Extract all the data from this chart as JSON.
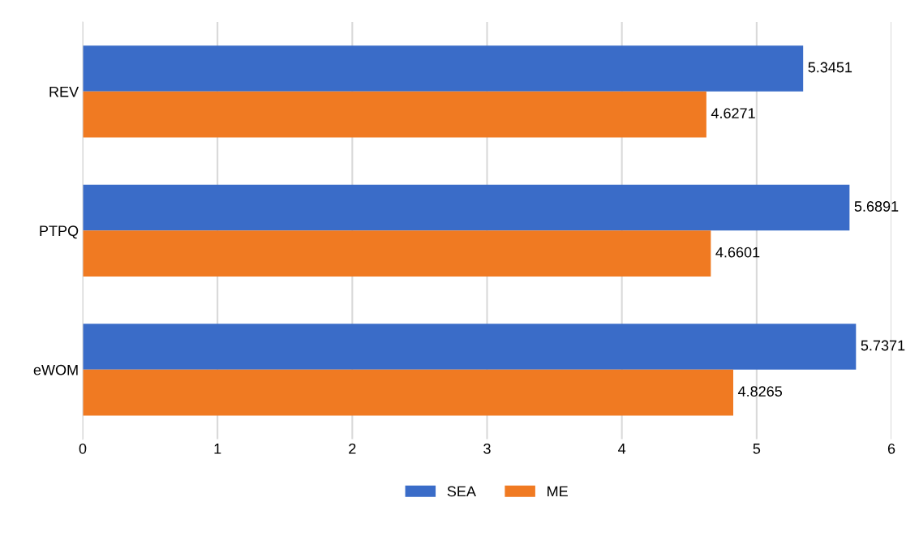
{
  "chart_data": {
    "type": "bar",
    "orientation": "horizontal",
    "categories": [
      "REV",
      "PTPQ",
      "eWOM"
    ],
    "series": [
      {
        "name": "SEA",
        "color": "#3a6cc8",
        "values": [
          5.3451,
          5.6891,
          5.7371
        ]
      },
      {
        "name": "ME",
        "color": "#f07a22",
        "values": [
          4.6271,
          4.6601,
          4.8265
        ]
      }
    ],
    "xlim": [
      0,
      6
    ],
    "xticks": [
      0,
      1,
      2,
      3,
      4,
      5,
      6
    ],
    "grid": "x",
    "legend": "bottom",
    "data_labels": true
  }
}
